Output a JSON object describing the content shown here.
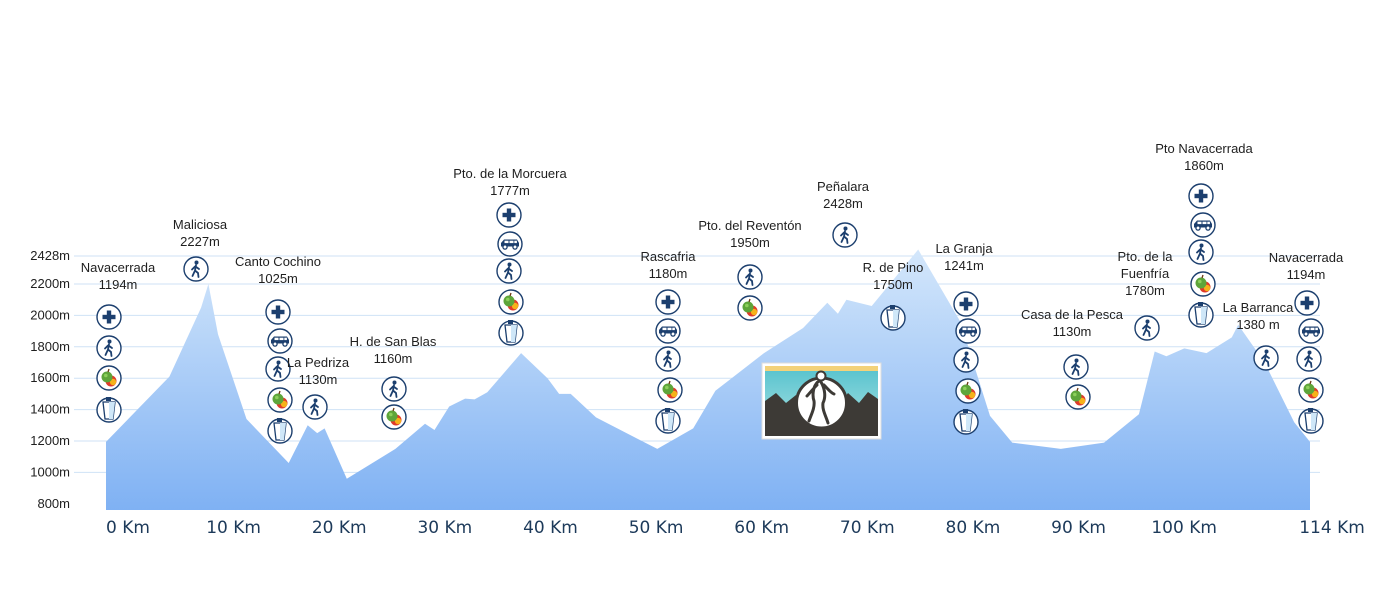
{
  "chart_data": {
    "type": "area",
    "title": "",
    "xlabel": "",
    "ylabel": "",
    "xlim": [
      0,
      114
    ],
    "ylim": [
      800,
      2428
    ],
    "y_ticks": [
      {
        "value": 800,
        "label": "800m"
      },
      {
        "value": 1000,
        "label": "1000m"
      },
      {
        "value": 1200,
        "label": "1200m"
      },
      {
        "value": 1400,
        "label": "1400m"
      },
      {
        "value": 1600,
        "label": "1600m"
      },
      {
        "value": 1800,
        "label": "1800m"
      },
      {
        "value": 2000,
        "label": "2000m"
      },
      {
        "value": 2200,
        "label": "2200m"
      },
      {
        "value": 2428,
        "label": "2428m"
      }
    ],
    "x_ticks": [
      {
        "value": 0,
        "label": "0 Km"
      },
      {
        "value": 10,
        "label": "10 Km"
      },
      {
        "value": 20,
        "label": "20 Km"
      },
      {
        "value": 30,
        "label": "30 Km"
      },
      {
        "value": 40,
        "label": "40 Km"
      },
      {
        "value": 50,
        "label": "50 Km"
      },
      {
        "value": 60,
        "label": "60 Km"
      },
      {
        "value": 70,
        "label": "70 Km"
      },
      {
        "value": 80,
        "label": "80 Km"
      },
      {
        "value": 90,
        "label": "90 Km"
      },
      {
        "value": 100,
        "label": "100 Km"
      },
      {
        "value": 114,
        "label": "114 Km"
      }
    ],
    "grid": true,
    "profile": {
      "x": [
        0,
        6,
        9,
        9.7,
        10.6,
        13.3,
        17.3,
        19.1,
        20,
        20.7,
        22.8,
        27.4,
        30.2,
        31.1,
        32.5,
        34,
        34.9,
        36.1,
        39.3,
        41.8,
        42.9,
        44,
        46.4,
        52.2,
        55.6,
        57.7,
        62.3,
        66,
        68.3,
        69.3,
        70.1,
        72.5,
        76.9,
        80.9,
        83.7,
        85.8,
        90.4,
        94.5,
        97.8,
        99.3,
        100.4,
        102.1,
        104.2,
        106.6,
        107.2,
        109.7,
        112.5,
        114
      ],
      "y": [
        1194,
        1610,
        2050,
        2200,
        1880,
        1340,
        1060,
        1300,
        1250,
        1280,
        960,
        1150,
        1310,
        1270,
        1420,
        1470,
        1465,
        1510,
        1760,
        1600,
        1500,
        1500,
        1350,
        1150,
        1280,
        1520,
        1760,
        1920,
        2080,
        2010,
        2100,
        2060,
        2420,
        1960,
        1360,
        1190,
        1150,
        1190,
        1370,
        1770,
        1740,
        1790,
        1760,
        1860,
        1940,
        1700,
        1320,
        1194
      ]
    }
  },
  "waypoints": [
    {
      "name": "Navacerrada",
      "elev": "1194m",
      "icons": [
        "medical-icon",
        "hiker-icon",
        "food-icon",
        "drink-icon"
      ]
    },
    {
      "name": "Maliciosa",
      "elev": "2227m",
      "icons": [
        "hiker-icon"
      ]
    },
    {
      "name": "Canto Cochino",
      "elev": "1025m",
      "icons": [
        "medical-icon",
        "vehicle-icon",
        "hiker-icon",
        "food-icon",
        "drink-icon"
      ]
    },
    {
      "name": "La Pedriza",
      "elev": "1130m",
      "icons": [
        "hiker-icon"
      ]
    },
    {
      "name": "H. de San Blas",
      "elev": "1160m",
      "icons": [
        "hiker-icon",
        "food-icon"
      ]
    },
    {
      "name": "Pto. de la Morcuera",
      "elev": "1777m",
      "icons": [
        "medical-icon",
        "vehicle-icon",
        "hiker-icon",
        "food-icon",
        "drink-icon"
      ]
    },
    {
      "name": "Rascafria",
      "elev": "1180m",
      "icons": [
        "medical-icon",
        "vehicle-icon",
        "hiker-icon",
        "food-icon",
        "drink-icon"
      ]
    },
    {
      "name": "Pto. del Reventón",
      "elev": "1950m",
      "icons": [
        "hiker-icon",
        "food-icon"
      ]
    },
    {
      "name": "Peñalara",
      "elev": "2428m",
      "icons": [
        "hiker-icon"
      ]
    },
    {
      "name": "R. de Pino",
      "elev": "1750m",
      "icons": [
        "drink-icon"
      ]
    },
    {
      "name": "La Granja",
      "elev": "1241m",
      "icons": [
        "medical-icon",
        "vehicle-icon",
        "hiker-icon",
        "food-icon",
        "drink-icon"
      ]
    },
    {
      "name": "Casa de la Pesca",
      "elev": "1130m",
      "icons": [
        "hiker-icon",
        "food-icon"
      ]
    },
    {
      "name": "Pto. de la Fuenfría",
      "elev": "1780m",
      "icons": [
        "hiker-icon"
      ]
    },
    {
      "name": "Pto Navacerrada",
      "elev": "1860m",
      "icons": [
        "medical-icon",
        "vehicle-icon",
        "hiker-icon",
        "food-icon",
        "drink-icon"
      ]
    },
    {
      "name": "La Barranca",
      "elev": "1380 m",
      "icons": [
        "hiker-icon"
      ]
    },
    {
      "name": "Navacerrada",
      "elev": "1194m",
      "icons": [
        "medical-icon",
        "vehicle-icon",
        "hiker-icon",
        "food-icon",
        "drink-icon"
      ]
    }
  ],
  "logo": {
    "icon": "runner-logo-icon"
  },
  "colors": {
    "area_top": "#d4e7fb",
    "area_bottom": "#7fb1f3",
    "grid": "#cfe2f6",
    "icon_stroke": "#1c3f6e",
    "axis_text": "#1d3a5a"
  }
}
